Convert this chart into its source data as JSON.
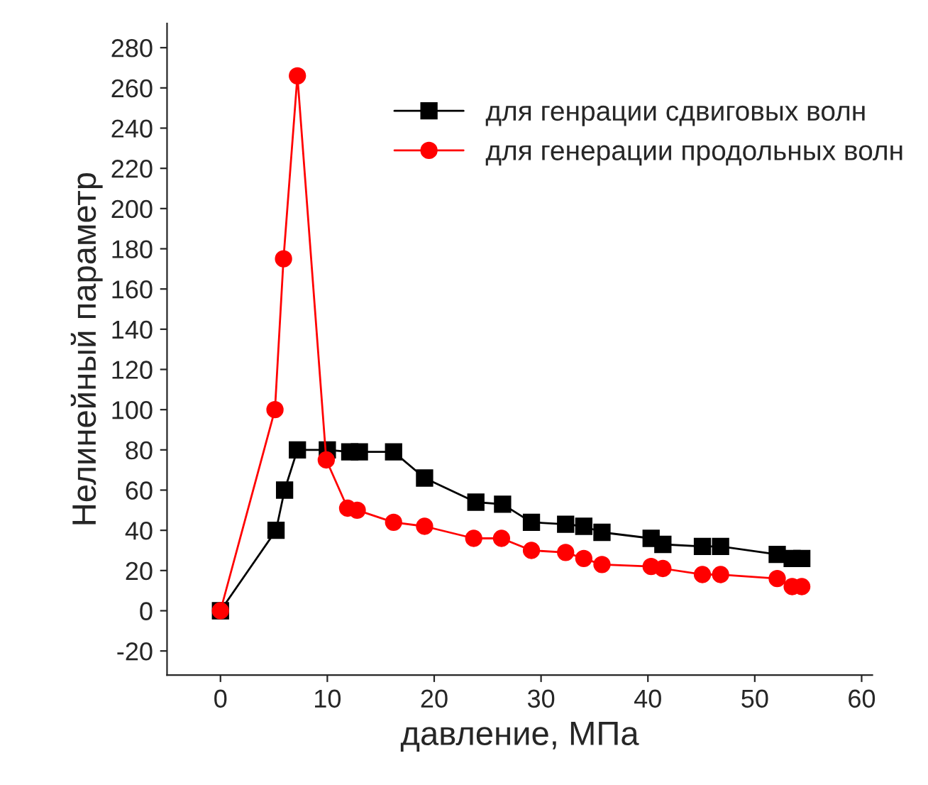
{
  "chart_data": {
    "type": "line",
    "xlabel": "давление, МПа",
    "ylabel": "Нелинейный параметр",
    "xlim": [
      -5,
      61
    ],
    "ylim": [
      -32,
      292
    ],
    "xticks": [
      0,
      10,
      20,
      30,
      40,
      50,
      60
    ],
    "yticks": [
      -20,
      0,
      20,
      40,
      60,
      80,
      100,
      120,
      140,
      160,
      180,
      200,
      220,
      240,
      260,
      280
    ],
    "legend": "top right",
    "grid": false,
    "series": [
      {
        "name": "для генрации сдвиговых волн",
        "color": "#000000",
        "marker": "square",
        "x": [
          0,
          5.2,
          6,
          7.2,
          10,
          12.1,
          13,
          16.2,
          19.1,
          23.9,
          26.4,
          29.1,
          32.3,
          34,
          35.7,
          40.3,
          41.4,
          45.1,
          46.8,
          52.1,
          53.5,
          54.4
        ],
        "values": [
          0,
          40,
          60,
          80,
          80,
          79,
          79,
          79,
          66,
          54,
          53,
          44,
          43,
          42,
          39,
          36,
          33,
          32,
          32,
          28,
          26,
          26
        ]
      },
      {
        "name": "для генерации продольных волн",
        "color": "#ff0000",
        "marker": "circle",
        "x": [
          0,
          5.1,
          5.9,
          7.2,
          9.9,
          11.9,
          12.8,
          16.2,
          19.1,
          23.7,
          26.3,
          29.1,
          32.3,
          34,
          35.7,
          40.3,
          41.4,
          45.1,
          46.8,
          52.1,
          53.5,
          54.4
        ],
        "values": [
          0,
          100,
          175,
          266,
          75,
          51,
          50,
          44,
          42,
          36,
          36,
          30,
          29,
          26,
          23,
          22,
          21,
          18,
          18,
          16,
          12,
          12
        ]
      }
    ]
  }
}
